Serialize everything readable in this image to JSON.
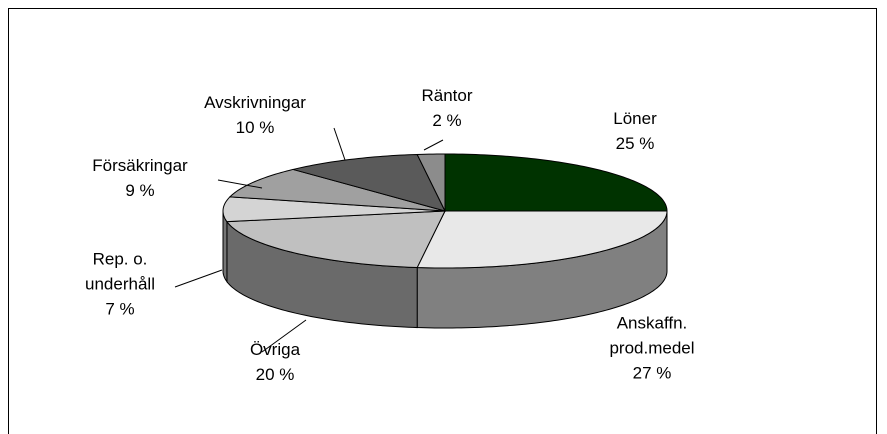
{
  "chart_data": {
    "type": "pie3d",
    "categories": [
      "Löner",
      "Anskaffn.\nprod.medel",
      "Övriga",
      "Rep. o.\nunderhåll",
      "Försäkringar",
      "Avskrivningar",
      "Räntor"
    ],
    "values": [
      25,
      27,
      20,
      7,
      9,
      10,
      2
    ],
    "value_labels": [
      "25 %",
      "27 %",
      "20 %",
      "7 %",
      "9 %",
      "10 %",
      "2 %"
    ],
    "colors": [
      "#003300",
      "#e8e8e8",
      "#c0c0c0",
      "#d4d4d4",
      "#a0a0a0",
      "#5a5a5a",
      "#8c8c8c"
    ]
  }
}
